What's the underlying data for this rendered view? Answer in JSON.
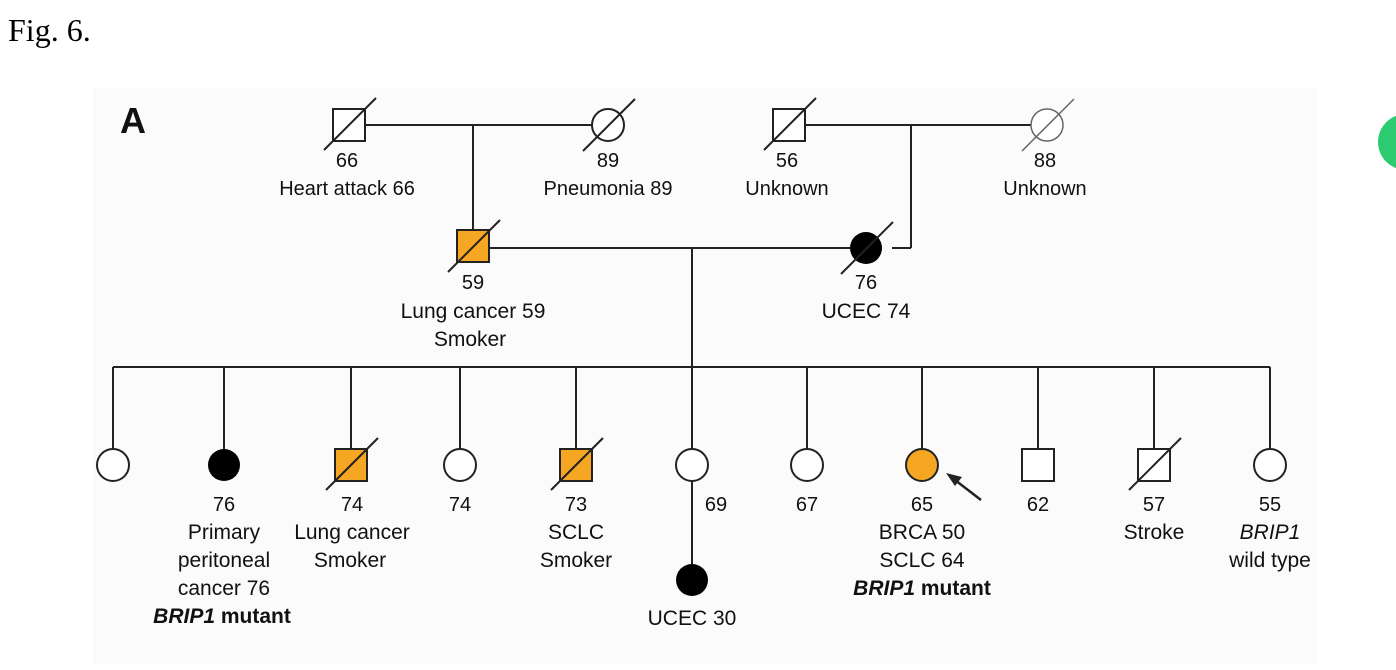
{
  "figure": {
    "label": "Fig. 6.",
    "panel": "A"
  },
  "colors": {
    "affected_orange": "#f5a623",
    "affected_black": "#000000",
    "panel_bg": "#fbfbfb",
    "accent_green": "#2ecc71"
  },
  "generation1": {
    "paternal_grandfather": {
      "age": "66",
      "note": "Heart attack 66"
    },
    "paternal_grandmother": {
      "age": "89",
      "note": "Pneumonia 89"
    },
    "maternal_grandfather": {
      "age": "56",
      "note": "Unknown"
    },
    "maternal_grandmother": {
      "age": "88",
      "note": "Unknown"
    }
  },
  "generation2": {
    "father": {
      "age": "59",
      "note1": "Lung cancer 59",
      "note2": "Smoker"
    },
    "mother": {
      "age": "76",
      "note1": "UCEC 74"
    }
  },
  "generation3": [
    {
      "age": "",
      "l1": "",
      "l2": "",
      "l3": "",
      "l4": ""
    },
    {
      "age": "76",
      "l1": "Primary",
      "l2": "peritoneal",
      "l3": "cancer 76",
      "l4_gene": "BRIP1",
      "l4_rest": " mutant"
    },
    {
      "age": "74",
      "l1": "Lung cancer",
      "l2": "Smoker"
    },
    {
      "age": "74"
    },
    {
      "age": "73",
      "l1": "SCLC",
      "l2": "Smoker"
    },
    {
      "age": "69"
    },
    {
      "age": "67"
    },
    {
      "age": "65",
      "l1": "BRCA 50",
      "l2": "SCLC 64",
      "l3_gene": "BRIP1",
      "l3_rest": " mutant"
    },
    {
      "age": "62"
    },
    {
      "age": "57",
      "l1": "Stroke"
    },
    {
      "age": "55",
      "l1_gene": "BRIP1",
      "l2": "wild type"
    }
  ],
  "generation4": {
    "child": {
      "note": "UCEC 30"
    }
  }
}
